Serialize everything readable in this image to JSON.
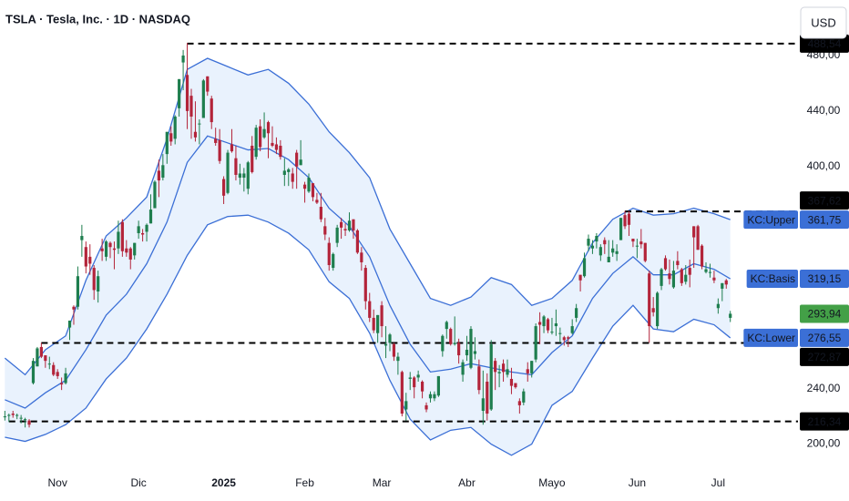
{
  "chart_data": {
    "type": "candlestick",
    "title": "TSLA · Tesla, Inc. · 1D · NASDAQ",
    "currency": "USD",
    "up_color": "#1e7e4e",
    "down_color": "#b3243a",
    "open": [
      220,
      221,
      222,
      221,
      219,
      218,
      217,
      244,
      256,
      270,
      264,
      258,
      257,
      252,
      244,
      244,
      284,
      299,
      299,
      347,
      342,
      335,
      327,
      310,
      341,
      335,
      345,
      341,
      341,
      360,
      341,
      341,
      336,
      352,
      352,
      353,
      359,
      370,
      397,
      392,
      409,
      424,
      420,
      442,
      475,
      466,
      451,
      425,
      431,
      435,
      465,
      449,
      420,
      419,
      391,
      381,
      416,
      406,
      392,
      392,
      384,
      415,
      407,
      429,
      421,
      432,
      417,
      416,
      415,
      394,
      396,
      395,
      410,
      401,
      387,
      382,
      388,
      376,
      371,
      357,
      345,
      327,
      345,
      360,
      355,
      354,
      362,
      354,
      338,
      327,
      303,
      291,
      280,
      300,
      271,
      273,
      272,
      260,
      252,
      225,
      247,
      248,
      248,
      245,
      228,
      233,
      233,
      235,
      267,
      283,
      283,
      272,
      273,
      250,
      264,
      255,
      265,
      256,
      224,
      245,
      225,
      260,
      251,
      258,
      250,
      247,
      244,
      231,
      230,
      254,
      251,
      261,
      288,
      285,
      290,
      281,
      285,
      280,
      277,
      277,
      280,
      291,
      322,
      321,
      343,
      341,
      346,
      336,
      347,
      331,
      338,
      337,
      347,
      365,
      366,
      348,
      343,
      346,
      345,
      323,
      298,
      285,
      314,
      334,
      323,
      313,
      332,
      326,
      317,
      327,
      357,
      357,
      343,
      324,
      324,
      320,
      298,
      312,
      318,
      291
    ],
    "high": [
      224,
      222,
      224,
      222,
      221,
      219,
      218,
      262,
      270,
      273,
      264,
      263,
      259,
      254,
      248,
      255,
      289,
      300,
      328,
      358,
      346,
      344,
      329,
      325,
      348,
      347,
      346,
      346,
      361,
      362,
      347,
      342,
      345,
      361,
      355,
      359,
      380,
      390,
      405,
      409,
      425,
      429,
      437,
      463,
      484,
      489,
      456,
      447,
      434,
      463,
      465,
      451,
      428,
      427,
      393,
      412,
      427,
      415,
      402,
      399,
      404,
      422,
      430,
      434,
      439,
      433,
      429,
      421,
      419,
      406,
      399,
      399,
      412,
      419,
      389,
      395,
      388,
      381,
      381,
      363,
      349,
      338,
      358,
      363,
      359,
      367,
      362,
      355,
      342,
      329,
      309,
      297,
      293,
      303,
      285,
      280,
      273,
      266,
      253,
      237,
      252,
      249,
      253,
      246,
      230,
      238,
      238,
      249,
      279,
      289,
      284,
      292,
      276,
      261,
      278,
      285,
      277,
      261,
      253,
      251,
      275,
      262,
      257,
      261,
      261,
      255,
      244,
      233,
      240,
      259,
      260,
      287,
      295,
      293,
      291,
      291,
      297,
      284,
      278,
      278,
      290,
      301,
      322,
      338,
      351,
      347,
      352,
      344,
      349,
      347,
      347,
      344,
      363,
      368,
      368,
      348,
      348,
      355,
      345,
      325,
      306,
      310,
      327,
      336,
      333,
      332,
      339,
      327,
      329,
      333,
      357,
      358,
      344,
      331,
      330,
      325,
      305,
      316,
      319,
      296
    ],
    "low": [
      217,
      216,
      219,
      218,
      215,
      212,
      212,
      243,
      256,
      262,
      255,
      254,
      249,
      247,
      239,
      243,
      275,
      286,
      297,
      335,
      323,
      322,
      304,
      302,
      332,
      332,
      334,
      326,
      337,
      335,
      335,
      326,
      333,
      348,
      346,
      346,
      359,
      370,
      378,
      390,
      402,
      415,
      416,
      436,
      455,
      427,
      420,
      418,
      416,
      435,
      451,
      427,
      415,
      402,
      373,
      380,
      410,
      390,
      387,
      382,
      380,
      395,
      405,
      411,
      420,
      406,
      414,
      409,
      405,
      386,
      386,
      384,
      384,
      401,
      374,
      381,
      375,
      373,
      360,
      347,
      325,
      325,
      342,
      348,
      350,
      353,
      348,
      337,
      325,
      297,
      288,
      280,
      273,
      277,
      262,
      267,
      260,
      250,
      220,
      217,
      239,
      233,
      245,
      233,
      223,
      230,
      231,
      234,
      263,
      276,
      271,
      271,
      258,
      245,
      260,
      254,
      261,
      236,
      214,
      217,
      224,
      239,
      241,
      245,
      248,
      236,
      240,
      222,
      228,
      245,
      248,
      259,
      272,
      280,
      280,
      279,
      278,
      273,
      271,
      270,
      279,
      288,
      310,
      320,
      339,
      337,
      341,
      332,
      337,
      331,
      335,
      332,
      347,
      355,
      350,
      342,
      334,
      341,
      331,
      273,
      292,
      283,
      311,
      325,
      315,
      312,
      326,
      314,
      315,
      313,
      327,
      340,
      326,
      323,
      320,
      316,
      294,
      303,
      312,
      288
    ],
    "close": [
      220,
      221,
      221,
      221,
      219,
      218,
      214,
      260,
      269,
      263,
      260,
      258,
      250,
      249,
      243,
      251,
      289,
      297,
      321,
      350,
      328,
      330,
      311,
      321,
      339,
      346,
      342,
      340,
      353,
      339,
      338,
      333,
      345,
      357,
      351,
      358,
      369,
      389,
      390,
      401,
      425,
      418,
      436,
      463,
      480,
      440,
      436,
      421,
      431,
      462,
      454,
      432,
      417,
      404,
      379,
      410,
      411,
      394,
      395,
      395,
      403,
      396,
      428,
      414,
      427,
      424,
      415,
      412,
      407,
      397,
      398,
      389,
      400,
      405,
      384,
      392,
      378,
      374,
      362,
      351,
      329,
      337,
      356,
      356,
      354,
      361,
      354,
      338,
      331,
      303,
      291,
      282,
      293,
      285,
      272,
      279,
      263,
      263,
      222,
      231,
      248,
      241,
      250,
      238,
      225,
      236,
      236,
      249,
      278,
      288,
      272,
      273,
      264,
      259,
      268,
      283,
      267,
      239,
      233,
      222,
      272,
      252,
      252,
      252,
      254,
      242,
      241,
      228,
      238,
      251,
      260,
      285,
      286,
      292,
      282,
      281,
      287,
      280,
      275,
      276,
      285,
      298,
      318,
      334,
      348,
      343,
      350,
      342,
      344,
      335,
      341,
      339,
      363,
      357,
      358,
      346,
      343,
      344,
      332,
      285,
      295,
      309,
      326,
      326,
      319,
      325,
      329,
      316,
      322,
      322,
      349,
      340,
      328,
      326,
      324,
      318,
      301,
      316,
      315,
      293.94
    ],
    "band_fill": "#e9f2fd",
    "series": [
      {
        "name": "KC:Upper",
        "color": "#3b6fd6",
        "value_label": "361,75",
        "x": [
          0,
          5,
          10,
          15,
          20,
          25,
          30,
          35,
          40,
          45,
          50,
          55,
          60,
          65,
          70,
          75,
          80,
          85,
          90,
          95,
          100,
          105,
          110,
          115,
          120,
          125,
          130,
          135,
          140,
          145,
          150,
          155,
          160,
          165,
          170,
          175,
          179
        ],
        "values": [
          262,
          250,
          268,
          278,
          318,
          350,
          363,
          378,
          420,
          470,
          478,
          472,
          466,
          470,
          460,
          445,
          425,
          410,
          392,
          355,
          330,
          305,
          300,
          306,
          320,
          315,
          300,
          305,
          318,
          345,
          362,
          370,
          365,
          366,
          370,
          366,
          361.75
        ]
      },
      {
        "name": "KC:Basis",
        "color": "#3b6fd6",
        "value_label": "319,15",
        "x": [
          0,
          5,
          10,
          15,
          20,
          25,
          30,
          35,
          40,
          45,
          50,
          55,
          60,
          65,
          70,
          75,
          80,
          85,
          90,
          95,
          100,
          105,
          110,
          115,
          120,
          125,
          130,
          135,
          140,
          145,
          150,
          155,
          160,
          165,
          170,
          175,
          179
        ],
        "values": [
          232,
          226,
          237,
          246,
          268,
          293,
          308,
          330,
          360,
          403,
          422,
          417,
          412,
          413,
          405,
          392,
          370,
          357,
          335,
          300,
          272,
          252,
          254,
          258,
          255,
          252,
          250,
          266,
          278,
          305,
          323,
          335,
          322,
          322,
          330,
          326,
          319.15
        ]
      },
      {
        "name": "KC:Lower",
        "color": "#3b6fd6",
        "value_label": "276,55",
        "x": [
          0,
          5,
          10,
          15,
          20,
          25,
          30,
          35,
          40,
          45,
          50,
          55,
          60,
          65,
          70,
          75,
          80,
          85,
          90,
          95,
          100,
          105,
          110,
          115,
          120,
          125,
          130,
          135,
          140,
          145,
          150,
          155,
          160,
          165,
          170,
          175,
          179
        ],
        "values": [
          205,
          202,
          207,
          214,
          226,
          247,
          262,
          283,
          308,
          336,
          358,
          364,
          365,
          360,
          352,
          340,
          317,
          305,
          280,
          246,
          218,
          203,
          210,
          212,
          200,
          192,
          200,
          228,
          238,
          262,
          285,
          300,
          283,
          281,
          290,
          286,
          276.55
        ]
      }
    ],
    "markers": [
      {
        "value": 488.54,
        "label": "488,54",
        "color": "#000000",
        "line": "dashed"
      },
      {
        "value": 367.62,
        "label": "367,62",
        "color": "#000000",
        "line": "dashed"
      },
      {
        "value": 293.94,
        "label": "293,94",
        "color": "#43a047"
      },
      {
        "value": 272.87,
        "label": "272,87",
        "color": "#000000",
        "line": "dashed"
      },
      {
        "value": 216.34,
        "label": "216,34",
        "color": "#000000",
        "line": "dashed"
      }
    ],
    "xlim": [
      -1.2,
      195.7
    ],
    "xticks": [
      {
        "value": 13,
        "label": "Nov"
      },
      {
        "value": 33,
        "label": "Dic"
      },
      {
        "value": 54,
        "label": "2025",
        "bold": true
      },
      {
        "value": 74,
        "label": "Feb"
      },
      {
        "value": 93,
        "label": "Mar"
      },
      {
        "value": 114,
        "label": "Abr"
      },
      {
        "value": 135,
        "label": "Mayo"
      },
      {
        "value": 156,
        "label": "Jun"
      },
      {
        "value": 176,
        "label": "Jul"
      }
    ],
    "ylim": [
      182,
      520
    ],
    "yticks": [
      {
        "value": 480,
        "label": "480,00"
      },
      {
        "value": 440,
        "label": "440,00"
      },
      {
        "value": 400,
        "label": "400,00"
      },
      {
        "value": 240,
        "label": "240,00"
      },
      {
        "value": 200,
        "label": "200,00"
      }
    ],
    "grid": false
  }
}
